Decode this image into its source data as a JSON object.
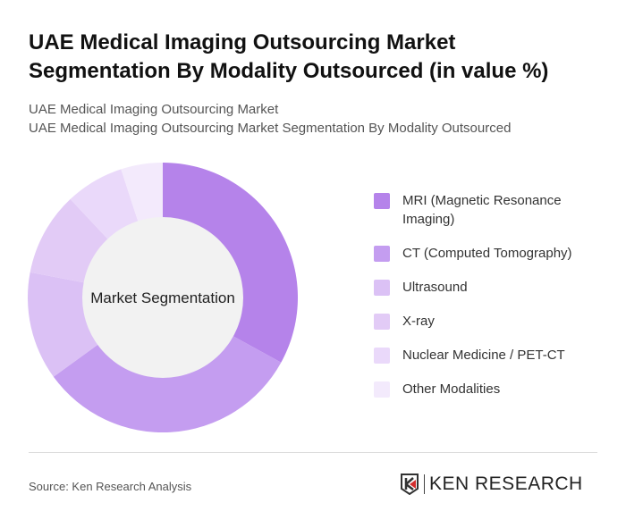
{
  "title": "UAE Medical Imaging Outsourcing Market Segmentation By Modality Outsourced (in value %)",
  "subtitle1": "UAE Medical Imaging Outsourcing Market",
  "subtitle2": "UAE Medical Imaging Outsourcing Market Segmentation By Modality Outsourced",
  "source": "Source: Ken Research Analysis",
  "logo_text": "KEN RESEARCH",
  "chart_data": {
    "type": "pie",
    "donut": true,
    "center_label": "Market Segmentation",
    "legend_position": "right",
    "categories": [
      "MRI (Magnetic Resonance Imaging)",
      "CT (Computed Tomography)",
      "Ultrasound",
      "X-ray",
      "Nuclear Medicine / PET-CT",
      "Other Modalities"
    ],
    "values": [
      33,
      32,
      13,
      10,
      7,
      5
    ],
    "colors": [
      "#b583ea",
      "#c49df0",
      "#dbc1f5",
      "#e2cbf6",
      "#ead9fa",
      "#f3eafc"
    ]
  }
}
